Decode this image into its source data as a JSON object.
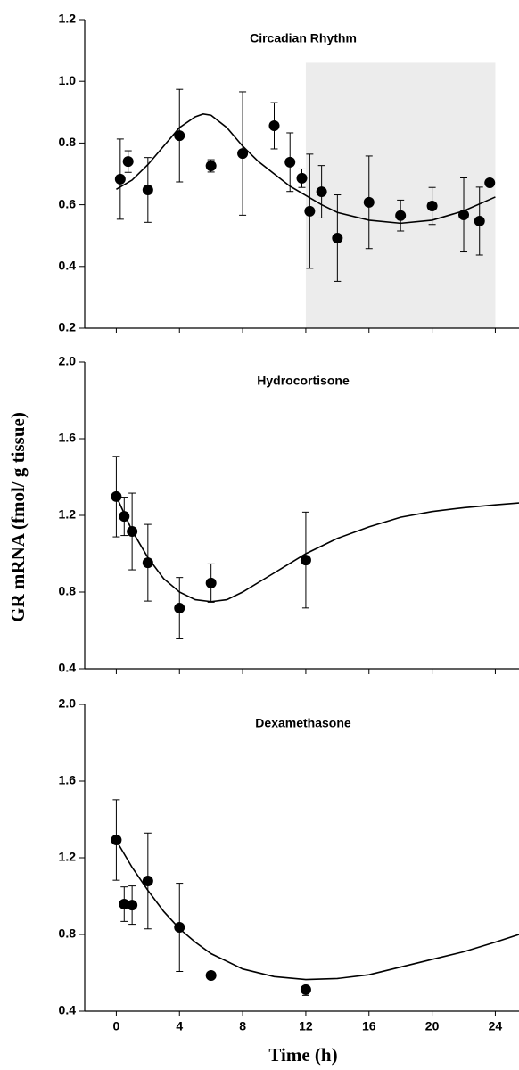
{
  "chart_data": [
    {
      "type": "scatter",
      "title": "Circadian Rhythm",
      "xlim": [
        -2,
        25.5
      ],
      "ylim": [
        0.2,
        1.2
      ],
      "xticks": [
        0,
        4,
        8,
        12,
        16,
        20,
        24
      ],
      "xtick_labels": false,
      "yticks": [
        0.2,
        0.4,
        0.6,
        0.8,
        {
          "value": 1.0,
          "label": "1.0"
        },
        1.2
      ],
      "shaded_x": [
        12,
        24
      ],
      "shaded_top": 1.06,
      "shade_color": "#ececec",
      "color": "#000000",
      "points": {
        "x": [
          0.25,
          0.75,
          2,
          4,
          6,
          8,
          10,
          11,
          11.75,
          12.25,
          13,
          14,
          16,
          18,
          20,
          22,
          23,
          23.65
        ],
        "values": [
          0.683,
          0.74,
          0.648,
          0.824,
          0.726,
          0.766,
          0.856,
          0.738,
          0.686,
          0.579,
          0.642,
          0.492,
          0.608,
          0.565,
          0.596,
          0.567,
          0.547,
          0.671
        ],
        "errors": [
          0.13,
          0.035,
          0.105,
          0.15,
          0.02,
          0.2,
          0.075,
          0.095,
          0.03,
          0.185,
          0.085,
          0.14,
          0.15,
          0.05,
          0.06,
          0.12,
          0.11,
          0
        ]
      },
      "curve": {
        "x": [
          0,
          1,
          2,
          3,
          4,
          5,
          5.5,
          6,
          7,
          8,
          9,
          10,
          11,
          12,
          13,
          14,
          16,
          18,
          20,
          22,
          24
        ],
        "values": [
          0.65,
          0.68,
          0.73,
          0.79,
          0.85,
          0.885,
          0.894,
          0.89,
          0.85,
          0.79,
          0.74,
          0.7,
          0.66,
          0.63,
          0.6,
          0.575,
          0.55,
          0.54,
          0.55,
          0.58,
          0.625
        ]
      }
    },
    {
      "type": "scatter",
      "title": "Hydrocortisone",
      "ylabel": "GR mRNA (fmol/ g tissue)",
      "xlim": [
        -2,
        25.5
      ],
      "ylim": [
        0.4,
        2.0
      ],
      "xticks": [
        0,
        4,
        8,
        12,
        16,
        20,
        24
      ],
      "xtick_labels": false,
      "yticks": [
        0.4,
        0.8,
        1.2,
        1.6,
        {
          "value": 2.0,
          "label": "2.0"
        }
      ],
      "color": "#000000",
      "points": {
        "x": [
          0,
          0.5,
          1,
          2,
          4,
          6,
          12
        ],
        "values": [
          1.298,
          1.195,
          1.116,
          0.953,
          0.716,
          0.847,
          0.967
        ],
        "errors": [
          0.21,
          0.1,
          0.2,
          0.2,
          0.16,
          0.1,
          0.25
        ]
      },
      "curve": {
        "x": [
          0,
          1,
          2,
          3,
          4,
          5,
          6,
          7,
          8,
          10,
          12,
          14,
          16,
          18,
          20,
          22,
          24,
          25.5
        ],
        "values": [
          1.3,
          1.12,
          0.98,
          0.87,
          0.8,
          0.76,
          0.75,
          0.76,
          0.8,
          0.9,
          1.0,
          1.08,
          1.14,
          1.19,
          1.22,
          1.24,
          1.255,
          1.265
        ]
      }
    },
    {
      "type": "scatter",
      "title": "Dexamethasone",
      "xlabel": "Time (h)",
      "xlim": [
        -2,
        25.5
      ],
      "ylim": [
        0.4,
        2.0
      ],
      "xticks": [
        0,
        4,
        8,
        12,
        16,
        20,
        24
      ],
      "xtick_labels": true,
      "yticks": [
        0.4,
        0.8,
        1.2,
        1.6,
        {
          "value": 2.0,
          "label": "2.0"
        }
      ],
      "color": "#000000",
      "points": {
        "x": [
          0,
          0.5,
          1,
          2,
          4,
          6,
          12
        ],
        "values": [
          1.293,
          0.958,
          0.953,
          1.079,
          0.837,
          0.586,
          0.512
        ],
        "errors": [
          0.21,
          0.09,
          0.1,
          0.25,
          0.23,
          0,
          0.03
        ]
      },
      "curve": {
        "x": [
          0,
          1,
          2,
          3,
          4,
          5,
          6,
          8,
          10,
          12,
          14,
          16,
          18,
          20,
          22,
          24,
          25.5
        ],
        "values": [
          1.29,
          1.15,
          1.03,
          0.92,
          0.83,
          0.76,
          0.7,
          0.62,
          0.58,
          0.565,
          0.57,
          0.59,
          0.63,
          0.67,
          0.71,
          0.76,
          0.8
        ]
      }
    }
  ]
}
